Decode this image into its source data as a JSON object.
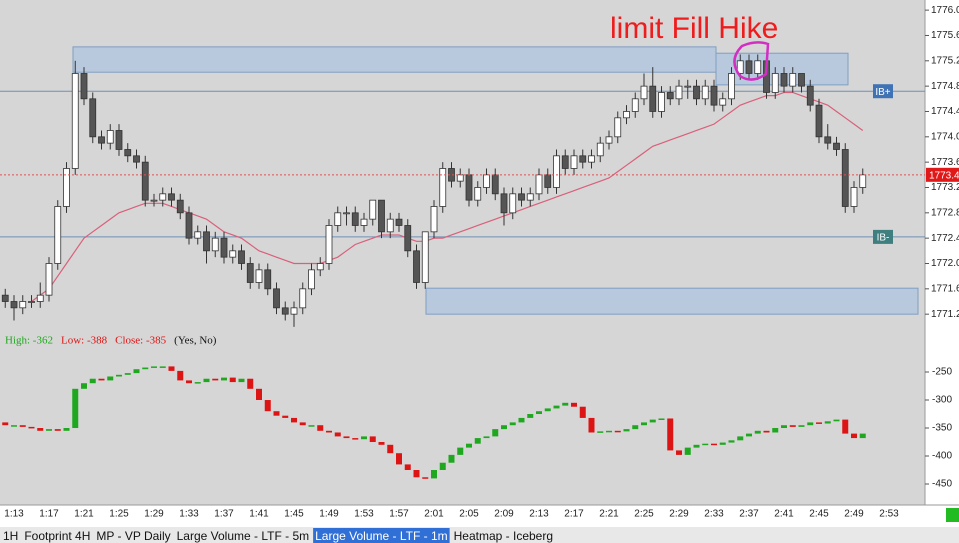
{
  "chart_data": {
    "type": "candlestick",
    "annotation": "limit Fill Hike",
    "categories": [
      null,
      "1:13",
      null,
      null,
      null,
      "1:17",
      null,
      null,
      null,
      "1:21",
      null,
      null,
      null,
      "1:25",
      null,
      null,
      null,
      "1:29",
      null,
      null,
      null,
      "1:33",
      null,
      null,
      null,
      "1:37",
      null,
      null,
      null,
      "1:41",
      null,
      null,
      null,
      "1:45",
      null,
      null,
      null,
      "1:49",
      null,
      null,
      null,
      "1:53",
      null,
      null,
      null,
      "1:57",
      null,
      null,
      null,
      "2:01",
      null,
      null,
      null,
      "2:05",
      null,
      null,
      null,
      "2:09",
      null,
      null,
      null,
      "2:13",
      null,
      null,
      null,
      "2:17",
      null,
      null,
      null,
      "2:21",
      null,
      null,
      null,
      "2:25",
      null,
      null,
      null,
      "2:29",
      null,
      null,
      null,
      "2:33",
      null,
      null,
      null,
      "2:37",
      null,
      null,
      null,
      "2:41",
      null,
      null,
      null,
      "2:45",
      null,
      null,
      null,
      "2:49",
      null,
      null,
      null,
      "2:53"
    ],
    "ohlc": [
      [
        1771.5,
        1771.6,
        1771.3,
        1771.4
      ],
      [
        1771.4,
        1771.5,
        1771.1,
        1771.3
      ],
      [
        1771.3,
        1771.5,
        1771.2,
        1771.4
      ],
      [
        1771.4,
        1771.5,
        1771.3,
        1771.4
      ],
      [
        1771.4,
        1771.7,
        1771.3,
        1771.5
      ],
      [
        1771.5,
        1772.1,
        1771.4,
        1772.0
      ],
      [
        1772.0,
        1773.0,
        1771.9,
        1772.9
      ],
      [
        1772.9,
        1773.6,
        1772.8,
        1773.5
      ],
      [
        1773.5,
        1775.2,
        1773.4,
        1775.0
      ],
      [
        1775.0,
        1775.1,
        1774.5,
        1774.6
      ],
      [
        1774.6,
        1774.7,
        1773.9,
        1774.0
      ],
      [
        1774.0,
        1774.1,
        1773.8,
        1773.9
      ],
      [
        1773.9,
        1774.2,
        1773.8,
        1774.1
      ],
      [
        1774.1,
        1774.2,
        1773.7,
        1773.8
      ],
      [
        1773.8,
        1773.9,
        1773.6,
        1773.7
      ],
      [
        1773.7,
        1773.8,
        1773.5,
        1773.6
      ],
      [
        1773.6,
        1773.7,
        1772.9,
        1773.0
      ],
      [
        1773.0,
        1773.1,
        1772.9,
        1773.0
      ],
      [
        1773.0,
        1773.2,
        1772.9,
        1773.1
      ],
      [
        1773.1,
        1773.2,
        1772.9,
        1773.0
      ],
      [
        1773.0,
        1773.1,
        1772.7,
        1772.8
      ],
      [
        1772.8,
        1772.9,
        1772.3,
        1772.4
      ],
      [
        1772.4,
        1772.6,
        1772.3,
        1772.5
      ],
      [
        1772.5,
        1772.6,
        1772.0,
        1772.2
      ],
      [
        1772.2,
        1772.5,
        1772.1,
        1772.4
      ],
      [
        1772.4,
        1772.5,
        1772.0,
        1772.1
      ],
      [
        1772.1,
        1772.3,
        1772.0,
        1772.2
      ],
      [
        1772.2,
        1772.3,
        1771.9,
        1772.0
      ],
      [
        1772.0,
        1772.1,
        1771.6,
        1771.7
      ],
      [
        1771.7,
        1772.0,
        1771.6,
        1771.9
      ],
      [
        1771.9,
        1772.0,
        1771.5,
        1771.6
      ],
      [
        1771.6,
        1771.7,
        1771.2,
        1771.3
      ],
      [
        1771.3,
        1771.4,
        1771.1,
        1771.2
      ],
      [
        1771.2,
        1771.4,
        1771.0,
        1771.3
      ],
      [
        1771.3,
        1771.7,
        1771.2,
        1771.6
      ],
      [
        1771.6,
        1772.0,
        1771.5,
        1771.9
      ],
      [
        1771.9,
        1772.1,
        1771.8,
        1772.0
      ],
      [
        1772.0,
        1772.7,
        1771.9,
        1772.6
      ],
      [
        1772.6,
        1772.9,
        1772.5,
        1772.8
      ],
      [
        1772.8,
        1772.9,
        1772.6,
        1772.8
      ],
      [
        1772.8,
        1772.9,
        1772.5,
        1772.6
      ],
      [
        1772.6,
        1772.8,
        1772.5,
        1772.7
      ],
      [
        1772.7,
        1773.0,
        1772.6,
        1773.0
      ],
      [
        1773.0,
        1773.0,
        1772.4,
        1772.5
      ],
      [
        1772.5,
        1772.8,
        1772.4,
        1772.7
      ],
      [
        1772.7,
        1772.8,
        1772.5,
        1772.6
      ],
      [
        1772.6,
        1772.7,
        1772.1,
        1772.2
      ],
      [
        1772.2,
        1772.3,
        1771.6,
        1771.7
      ],
      [
        1771.7,
        1772.5,
        1771.6,
        1772.5
      ],
      [
        1772.5,
        1773.0,
        1772.4,
        1772.9
      ],
      [
        1772.9,
        1773.6,
        1772.8,
        1773.5
      ],
      [
        1773.5,
        1773.6,
        1773.2,
        1773.3
      ],
      [
        1773.3,
        1773.5,
        1773.2,
        1773.4
      ],
      [
        1773.4,
        1773.5,
        1772.9,
        1773.0
      ],
      [
        1773.0,
        1773.3,
        1772.9,
        1773.2
      ],
      [
        1773.2,
        1773.5,
        1773.1,
        1773.4
      ],
      [
        1773.4,
        1773.5,
        1773.0,
        1773.1
      ],
      [
        1773.1,
        1773.2,
        1772.6,
        1772.8
      ],
      [
        1772.8,
        1773.2,
        1772.7,
        1773.1
      ],
      [
        1773.1,
        1773.2,
        1772.9,
        1773.0
      ],
      [
        1773.0,
        1773.2,
        1772.9,
        1773.1
      ],
      [
        1773.1,
        1773.5,
        1773.0,
        1773.4
      ],
      [
        1773.4,
        1773.5,
        1773.1,
        1773.2
      ],
      [
        1773.2,
        1773.8,
        1773.1,
        1773.7
      ],
      [
        1773.7,
        1773.8,
        1773.4,
        1773.5
      ],
      [
        1773.5,
        1773.8,
        1773.4,
        1773.7
      ],
      [
        1773.7,
        1773.8,
        1773.5,
        1773.6
      ],
      [
        1773.6,
        1773.8,
        1773.5,
        1773.7
      ],
      [
        1773.7,
        1774.0,
        1773.6,
        1773.9
      ],
      [
        1773.9,
        1774.1,
        1773.8,
        1774.0
      ],
      [
        1774.0,
        1774.4,
        1773.9,
        1774.3
      ],
      [
        1774.3,
        1774.5,
        1774.2,
        1774.4
      ],
      [
        1774.4,
        1774.7,
        1774.3,
        1774.6
      ],
      [
        1774.6,
        1775.0,
        1774.5,
        1774.8
      ],
      [
        1774.8,
        1775.1,
        1774.3,
        1774.4
      ],
      [
        1774.4,
        1774.8,
        1774.3,
        1774.7
      ],
      [
        1774.7,
        1774.8,
        1774.5,
        1774.6
      ],
      [
        1774.6,
        1774.9,
        1774.5,
        1774.8
      ],
      [
        1774.8,
        1774.9,
        1774.6,
        1774.8
      ],
      [
        1774.8,
        1774.9,
        1774.5,
        1774.6
      ],
      [
        1774.6,
        1774.9,
        1774.5,
        1774.8
      ],
      [
        1774.8,
        1774.9,
        1774.4,
        1774.5
      ],
      [
        1774.5,
        1774.7,
        1774.4,
        1774.6
      ],
      [
        1774.6,
        1775.1,
        1774.5,
        1775.0
      ],
      [
        1775.0,
        1775.3,
        1774.9,
        1775.2
      ],
      [
        1775.2,
        1775.3,
        1774.9,
        1775.0
      ],
      [
        1775.0,
        1775.3,
        1774.9,
        1775.2
      ],
      [
        1775.2,
        1775.2,
        1774.6,
        1774.7
      ],
      [
        1774.7,
        1775.1,
        1774.6,
        1775.0
      ],
      [
        1775.0,
        1775.1,
        1774.7,
        1774.8
      ],
      [
        1774.8,
        1775.1,
        1774.7,
        1775.0
      ],
      [
        1775.0,
        1775.0,
        1774.7,
        1774.8
      ],
      [
        1774.8,
        1774.9,
        1774.4,
        1774.5
      ],
      [
        1774.5,
        1774.6,
        1773.9,
        1774.0
      ],
      [
        1774.0,
        1774.2,
        1773.8,
        1773.9
      ],
      [
        1773.9,
        1774.0,
        1773.7,
        1773.8
      ],
      [
        1773.8,
        1773.9,
        1772.8,
        1772.9
      ],
      [
        1772.9,
        1773.3,
        1772.8,
        1773.2
      ],
      [
        1773.2,
        1773.5,
        1773.1,
        1773.4
      ],
      null,
      null,
      null
    ],
    "ma": [
      null,
      null,
      null,
      1771.4,
      1771.5,
      1771.6,
      1771.8,
      1772.0,
      1772.2,
      1772.4,
      1772.5,
      1772.6,
      1772.7,
      1772.8,
      1772.85,
      1772.9,
      1772.95,
      1772.95,
      1772.95,
      1772.9,
      1772.85,
      1772.8,
      1772.75,
      1772.7,
      1772.6,
      1772.5,
      1772.45,
      1772.4,
      1772.3,
      1772.2,
      1772.15,
      1772.1,
      1772.05,
      1772.0,
      1772.0,
      1772.0,
      1772.0,
      1772.05,
      1772.1,
      1772.2,
      1772.3,
      1772.35,
      1772.4,
      1772.45,
      1772.45,
      1772.45,
      1772.4,
      1772.35,
      1772.35,
      1772.4,
      1772.4,
      1772.45,
      1772.5,
      1772.55,
      1772.6,
      1772.65,
      1772.7,
      1772.75,
      1772.8,
      1772.85,
      1772.9,
      1772.95,
      1773.0,
      1773.05,
      1773.1,
      1773.15,
      1773.2,
      1773.25,
      1773.3,
      1773.35,
      1773.45,
      1773.55,
      1773.65,
      1773.75,
      1773.85,
      1773.9,
      1773.95,
      1774.0,
      1774.05,
      1774.1,
      1774.15,
      1774.2,
      1774.3,
      1774.4,
      1774.5,
      1774.55,
      1774.6,
      1774.65,
      1774.65,
      1774.7,
      1774.7,
      1774.65,
      1774.6,
      1774.55,
      1774.5,
      1774.4,
      1774.3,
      1774.2,
      1774.1,
      null,
      null,
      null
    ],
    "up_color": "#ffffff",
    "down_color": "#555555",
    "ma_color": "#d9607a",
    "ylim": [
      1770.95,
      1776.16
    ],
    "yticks": [
      {
        "value": 1776,
        "label": "1776.0"
      },
      1775.6,
      1775.2,
      1774.8,
      1774.4,
      {
        "value": 1774,
        "label": "1774.0"
      },
      1773.6,
      1773.2,
      1772.8,
      1772.4,
      {
        "value": 1772,
        "label": "1772.0"
      },
      1771.6,
      1771.2
    ],
    "last_price": 1773.4,
    "ib_high": {
      "value": 1774.72,
      "label": "IB+"
    },
    "ib_low": {
      "value": 1772.42,
      "label": "IB-"
    },
    "zones": [
      {
        "top": 1775.42,
        "bottom": 1775.02
      },
      {
        "top": 1775.32,
        "bottom": 1774.82
      },
      {
        "top": 1771.61,
        "bottom": 1771.2
      }
    ],
    "delta": {
      "open": [
        -340,
        -345,
        -345,
        -348,
        -350,
        -355,
        -352,
        -355,
        -350,
        -280,
        -270,
        -262,
        -265,
        -258,
        -255,
        -252,
        -245,
        -242,
        -240,
        -240,
        -248,
        -265,
        -270,
        -268,
        -262,
        -265,
        -260,
        -268,
        -262,
        -280,
        -300,
        -320,
        -328,
        -332,
        -340,
        -345,
        -345,
        -355,
        -358,
        -365,
        -368,
        -370,
        -365,
        -375,
        -380,
        -395,
        -415,
        -425,
        -438,
        -440,
        -425,
        -412,
        -398,
        -385,
        -378,
        -368,
        -365,
        -352,
        -345,
        -340,
        -332,
        -325,
        -320,
        -315,
        -310,
        -305,
        -312,
        -332,
        -358,
        -356,
        -355,
        -356,
        -352,
        -345,
        -340,
        -335,
        -333,
        -390,
        -398,
        -385,
        -380,
        -378,
        -380,
        -376,
        -372,
        -365,
        -360,
        -355,
        -358,
        -350,
        -345,
        -348,
        -345,
        -340,
        -342,
        -338,
        -335,
        -360,
        -368,
        null,
        null,
        null
      ],
      "close": [
        -345,
        -345,
        -348,
        -350,
        -355,
        -352,
        -355,
        -350,
        -280,
        -270,
        -262,
        -265,
        -258,
        -255,
        -252,
        -245,
        -242,
        -240,
        -240,
        -248,
        -265,
        -270,
        -268,
        -262,
        -265,
        -260,
        -268,
        -262,
        -280,
        -300,
        -320,
        -328,
        -332,
        -340,
        -345,
        -345,
        -355,
        -358,
        -365,
        -368,
        -370,
        -365,
        -375,
        -380,
        -395,
        -415,
        -425,
        -438,
        -440,
        -425,
        -412,
        -398,
        -385,
        -378,
        -368,
        -365,
        -352,
        -345,
        -340,
        -332,
        -325,
        -320,
        -315,
        -310,
        -305,
        -312,
        -332,
        -358,
        -356,
        -355,
        -356,
        -352,
        -345,
        -340,
        -335,
        -333,
        -390,
        -398,
        -385,
        -380,
        -378,
        -380,
        -376,
        -372,
        -365,
        -360,
        -355,
        -358,
        -350,
        -345,
        -348,
        -345,
        -340,
        -342,
        -338,
        -335,
        -360,
        -368,
        -360,
        null,
        null,
        null
      ],
      "up_color": "#1fa81f",
      "down_color": "#dd1414",
      "ylim": [
        -487.5,
        -183.9
      ],
      "yticks": [
        -250,
        -300,
        -350,
        -400,
        -450
      ],
      "stats": [
        {
          "text": "High: -362",
          "color": "#1fa81f"
        },
        {
          "text": "Low: -388",
          "color": "#dd1414"
        },
        {
          "text": "Close: -385",
          "color": "#dd1414"
        },
        {
          "text": "(Yes, No)",
          "color": "#111111"
        }
      ]
    },
    "tabs": [
      "1H",
      "Footprint 4H",
      "MP - VP Daily",
      "Large Volume - LTF - 5m",
      "Large Volume - LTF - 1m",
      "Heatmap - Iceberg"
    ],
    "active_tab": 4
  }
}
